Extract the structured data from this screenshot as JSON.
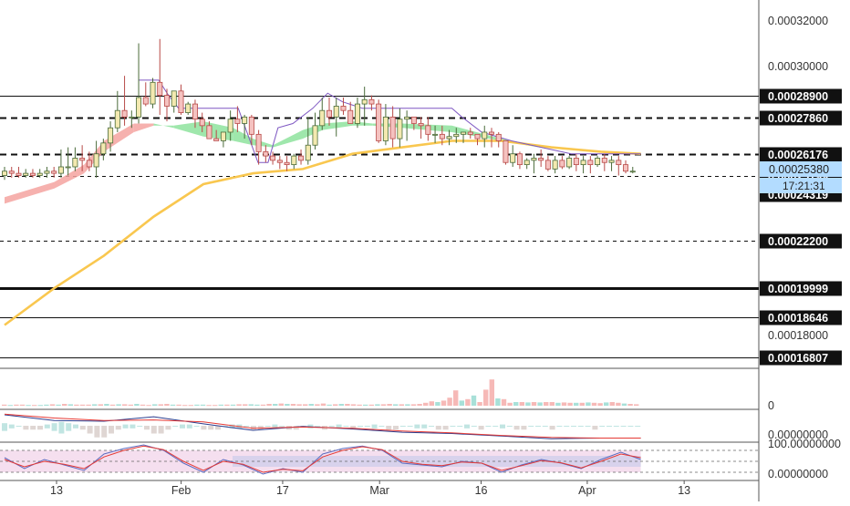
{
  "colors": {
    "up": "#26a69a",
    "down": "#ef5350",
    "candle_up_fill": "#f3e9b0",
    "candle_down_fill": "#f5c2c0",
    "ma_slow": "#f9c74f",
    "ma_band_up": "#8ee39e",
    "ma_band_down": "#f4a3a0",
    "channel": "#7e57c2",
    "osc_fill": "#d1c4e9",
    "osc_bg": "#e8b7dc",
    "price_tag": "#b3dcff",
    "axis_line": "#555555"
  },
  "chart_data": [
    {
      "type": "candlestick",
      "title": "",
      "price_axis_ticks": [
        "0.00032000",
        "0.00030000",
        "0.00018000"
      ],
      "ylim": [
        0.000163,
        0.000333
      ],
      "x_ticks": [
        "13",
        "Feb",
        "17",
        "Mar",
        "16",
        "Apr",
        "13"
      ],
      "x_range": [
        0,
        154
      ],
      "x_tick_positions": [
        0,
        27,
        49,
        70,
        92,
        115,
        136
      ],
      "price_tag": {
        "value": "0.00025380",
        "countdown": "17:21:31"
      },
      "horizontal_levels": [
        {
          "value": 0.000289,
          "label": "0.00028900",
          "style": "solid",
          "weight": 1
        },
        {
          "value": 0.0002786,
          "label": "0.00027860",
          "style": "dashed",
          "weight": 2
        },
        {
          "value": 0.00026176,
          "label": "0.00026176",
          "style": "dashed",
          "weight": 2
        },
        {
          "value": 0.00025199,
          "label": "0.00025199",
          "style": "dashed",
          "weight": 1
        },
        {
          "value": 0.00024319,
          "label": "0.00024319",
          "style": "none",
          "weight": 1
        },
        {
          "value": 0.000222,
          "label": "0.00022200",
          "style": "dashed",
          "weight": 1
        },
        {
          "value": 0.00019999,
          "label": "0.00019999",
          "style": "solid",
          "weight": 3
        },
        {
          "value": 0.00018646,
          "label": "0.00018646",
          "style": "solid",
          "weight": 1
        },
        {
          "value": 0.00016807,
          "label": "0.00016807",
          "style": "solid",
          "weight": 1
        }
      ],
      "candles_o": [
        0.000252,
        0.000254,
        0.000253,
        0.000252,
        0.000253,
        0.000252,
        0.000253,
        0.000254,
        0.000253,
        0.000256,
        0.000256,
        0.00026,
        0.000259,
        0.000256,
        0.000262,
        0.000267,
        0.000274,
        0.000282,
        0.000279,
        0.000279,
        0.000288,
        0.000285,
        0.000295,
        0.000289,
        0.000284,
        0.000291,
        0.000281,
        0.000285,
        0.000278,
        0.000275,
        0.000269,
        0.000268,
        0.000272,
        0.000278,
        0.000276,
        0.000279,
        0.000271,
        0.000263,
        0.000261,
        0.000259,
        0.000258,
        0.000257,
        0.000261,
        0.000259,
        0.000266,
        0.000275,
        0.000282,
        0.000279,
        0.000284,
        0.000282,
        0.000276,
        0.000285,
        0.000287,
        0.000285,
        0.000268,
        0.000279,
        0.000269,
        0.000278,
        0.000279,
        0.000276,
        0.000275,
        0.000271,
        0.000271,
        0.000269,
        0.00027,
        0.000271,
        0.000272,
        0.000271,
        0.000269,
        0.000272,
        0.000271,
        0.000268,
        0.000258,
        0.000262,
        0.000257,
        0.000259,
        0.00026,
        0.000259,
        0.000255,
        0.000259,
        0.000256,
        0.00026,
        0.000257,
        0.000259,
        0.000257,
        0.00026,
        0.000258,
        0.000259,
        0.000257,
        0.000254
      ],
      "candles_h": [
        0.000256,
        0.000256,
        0.000256,
        0.000255,
        0.000255,
        0.000255,
        0.000256,
        0.000256,
        0.000264,
        0.000265,
        0.000265,
        0.000266,
        0.000263,
        0.000268,
        0.000269,
        0.000277,
        0.000291,
        0.000298,
        0.000282,
        0.000313,
        0.000295,
        0.000297,
        0.000315,
        0.000292,
        0.00029,
        0.000294,
        0.000286,
        0.000287,
        0.000281,
        0.000277,
        0.000273,
        0.000271,
        0.000282,
        0.000284,
        0.00028,
        0.00028,
        0.000273,
        0.000266,
        0.000263,
        0.000261,
        0.000261,
        0.000262,
        0.000264,
        0.000279,
        0.000281,
        0.000288,
        0.000288,
        0.000288,
        0.000288,
        0.000286,
        0.000288,
        0.000293,
        0.000289,
        0.000287,
        0.000285,
        0.000284,
        0.000283,
        0.000282,
        0.000279,
        0.000279,
        0.000279,
        0.000275,
        0.000275,
        0.000273,
        0.000274,
        0.000272,
        0.000274,
        0.000271,
        0.000275,
        0.000274,
        0.000272,
        0.000268,
        0.000266,
        0.000263,
        0.00026,
        0.000262,
        0.000264,
        0.000261,
        0.000261,
        0.000261,
        0.000261,
        0.000262,
        0.000261,
        0.000261,
        0.000261,
        0.000262,
        0.000261,
        0.000261,
        0.000259,
        0.000256
      ],
      "candles_l": [
        0.00025,
        0.000251,
        0.000251,
        0.000251,
        0.000251,
        0.000251,
        0.000251,
        0.000251,
        0.000251,
        0.000252,
        0.000254,
        0.000254,
        0.000254,
        0.000251,
        0.000259,
        0.000263,
        0.000272,
        0.000275,
        0.000274,
        0.000276,
        0.000284,
        0.000283,
        0.00028,
        0.000277,
        0.000281,
        0.00028,
        0.00028,
        0.000274,
        0.000272,
        0.000272,
        0.000268,
        0.000265,
        0.000268,
        0.000272,
        0.000269,
        0.000266,
        0.000257,
        0.000258,
        0.000257,
        0.000255,
        0.000254,
        0.000255,
        0.000257,
        0.000257,
        0.000264,
        0.000273,
        0.000275,
        0.00027,
        0.00028,
        0.000278,
        0.000274,
        0.000275,
        0.000282,
        0.000267,
        0.000266,
        0.000265,
        0.000265,
        0.000268,
        0.000273,
        0.000269,
        0.000268,
        0.000267,
        0.000266,
        0.000266,
        0.000267,
        0.000267,
        0.000269,
        0.000266,
        0.000265,
        0.000265,
        0.000265,
        0.000257,
        0.000256,
        0.000255,
        0.000255,
        0.000253,
        0.000256,
        0.000254,
        0.000253,
        0.000255,
        0.000255,
        0.000254,
        0.000253,
        0.000253,
        0.000256,
        0.000254,
        0.000254,
        0.000252,
        0.000253,
        0.000253
      ],
      "candles_c": [
        0.000254,
        0.000253,
        0.000252,
        0.000253,
        0.000252,
        0.000253,
        0.000254,
        0.000253,
        0.000256,
        0.000256,
        0.00026,
        0.000259,
        0.000256,
        0.000262,
        0.000267,
        0.000274,
        0.000282,
        0.000279,
        0.000279,
        0.000288,
        0.000285,
        0.000295,
        0.000289,
        0.000284,
        0.000291,
        0.000281,
        0.000285,
        0.000278,
        0.000275,
        0.000269,
        0.000268,
        0.000272,
        0.000278,
        0.000276,
        0.000279,
        0.000271,
        0.000263,
        0.000261,
        0.000259,
        0.000258,
        0.000257,
        0.000261,
        0.000259,
        0.000266,
        0.000275,
        0.000282,
        0.000279,
        0.000284,
        0.000282,
        0.000276,
        0.000285,
        0.000287,
        0.000285,
        0.000268,
        0.000279,
        0.000269,
        0.000278,
        0.000279,
        0.000276,
        0.000275,
        0.000271,
        0.000271,
        0.000269,
        0.00027,
        0.000271,
        0.000272,
        0.000271,
        0.000269,
        0.000272,
        0.000271,
        0.000268,
        0.000258,
        0.000262,
        0.000257,
        0.000259,
        0.00026,
        0.000259,
        0.000255,
        0.000259,
        0.000256,
        0.00026,
        0.000257,
        0.000259,
        0.000257,
        0.00026,
        0.000258,
        0.000259,
        0.000257,
        0.000254,
        0.000254
      ],
      "candle_x_start": 0,
      "ma_slow_x": [
        0,
        10,
        20,
        30,
        40,
        50,
        60,
        70,
        80,
        90,
        100,
        110,
        120,
        128
      ],
      "ma_slow_y": [
        0.000183,
        0.0002,
        0.000215,
        0.000233,
        0.000248,
        0.000253,
        0.000255,
        0.000262,
        0.000265,
        0.000268,
        0.000268,
        0.000265,
        0.000263,
        0.000262
      ],
      "ma_fast_x": [
        0,
        10,
        16,
        20,
        26,
        30,
        34,
        40,
        46,
        50,
        54,
        60,
        64,
        70,
        74,
        80,
        90,
        100,
        110,
        120,
        128
      ],
      "ma_fast_a": [
        0.000239,
        0.000246,
        0.000253,
        0.000263,
        0.000272,
        0.000275,
        0.000275,
        0.000277,
        0.000274,
        0.000269,
        0.000266,
        0.000273,
        0.000276,
        0.000277,
        0.000276,
        0.000276,
        0.000275,
        0.000269,
        0.000264,
        0.000261,
        0.000259
      ],
      "ma_fast_b": [
        0.000242,
        0.000249,
        0.000257,
        0.000268,
        0.000276,
        0.000276,
        0.000274,
        0.00027,
        0.000268,
        0.000266,
        0.000265,
        0.000269,
        0.000273,
        0.000275,
        0.000275,
        0.000274,
        0.000272,
        0.000268,
        0.000264,
        0.000261,
        0.000259
      ],
      "channel_x": [
        27,
        31,
        33,
        35,
        38,
        42,
        47,
        51,
        53,
        55,
        58,
        62,
        65,
        68,
        72,
        78,
        84,
        88,
        90,
        92,
        96,
        102,
        108,
        114,
        120,
        126,
        128
      ],
      "channel_y": [
        0.000296,
        0.000296,
        0.000289,
        0.000283,
        0.000283,
        0.000283,
        0.000283,
        0.000258,
        0.000258,
        0.000274,
        0.000276,
        0.000283,
        0.00029,
        0.000286,
        0.000283,
        0.000283,
        0.000283,
        0.000283,
        0.000283,
        0.000279,
        0.000272,
        0.000268,
        0.000265,
        0.000262,
        0.000262,
        0.000262,
        0.000262
      ]
    },
    {
      "type": "bar",
      "title": "",
      "axis_tick": "0",
      "ylim": [
        0,
        100
      ],
      "values": [
        3,
        2,
        3,
        3,
        2,
        2,
        2,
        3,
        4,
        3,
        5,
        4,
        3,
        3,
        3,
        4,
        4,
        5,
        3,
        4,
        4,
        3,
        5,
        3,
        2,
        4,
        4,
        5,
        3,
        3,
        2,
        2,
        3,
        3,
        2,
        2,
        3,
        3,
        3,
        4,
        4,
        4,
        3,
        3,
        5,
        5,
        6,
        5,
        5,
        4,
        4,
        5,
        4,
        6,
        3,
        4,
        5,
        5,
        4,
        3,
        3,
        3,
        4,
        4,
        5,
        4,
        4,
        4,
        4,
        5,
        8,
        12,
        10,
        14,
        22,
        42,
        14,
        18,
        28,
        10,
        44,
        72,
        20,
        18,
        8,
        10,
        10,
        9,
        10,
        9,
        10,
        10,
        8,
        9,
        8,
        8,
        8,
        9,
        8,
        7,
        9,
        10,
        8,
        6,
        5,
        4
      ],
      "up_flags": [
        0,
        1,
        0,
        0,
        1,
        0,
        1,
        1,
        0,
        1,
        0,
        1,
        0,
        0,
        0,
        1,
        0,
        1,
        0,
        1,
        0,
        0,
        1,
        0,
        0,
        1,
        0,
        0,
        1,
        0,
        0,
        0,
        1,
        1,
        0,
        0,
        1,
        0,
        1,
        0,
        0,
        1,
        1,
        0,
        0,
        1,
        0,
        1,
        0,
        0,
        0,
        1,
        0,
        0,
        1,
        0,
        1,
        0,
        0,
        0,
        1,
        0,
        1,
        0,
        0,
        1,
        0,
        1,
        0,
        0,
        0,
        0,
        1,
        0,
        0,
        0,
        1,
        0,
        1,
        0,
        0,
        0,
        1,
        0,
        0,
        1,
        0,
        1,
        0,
        1,
        0,
        0,
        1,
        0,
        0,
        1,
        0,
        1,
        0,
        0,
        1,
        0,
        0,
        1,
        0,
        0
      ]
    },
    {
      "type": "line",
      "title": "",
      "axis_tick": "0.00000000",
      "ylim": [
        -1.2,
        1.2
      ],
      "series": [
        {
          "x": [
            0,
            10,
            20,
            30,
            40,
            50,
            60,
            70,
            80,
            90,
            100,
            110,
            120,
            128
          ],
          "y": [
            0.85,
            0.4,
            0.35,
            0.7,
            0.15,
            -0.35,
            -0.05,
            -0.25,
            -0.5,
            -0.6,
            -0.8,
            -1.0,
            -0.95,
            -0.95
          ]
        },
        {
          "x": [
            0,
            10,
            20,
            30,
            40,
            50,
            60,
            70,
            80,
            90,
            100,
            110,
            120,
            128
          ],
          "y": [
            0.9,
            0.6,
            0.4,
            0.45,
            0.3,
            -0.2,
            -0.1,
            -0.2,
            -0.4,
            -0.55,
            -0.75,
            -0.9,
            -0.95,
            -0.95
          ]
        }
      ],
      "histogram": [
        0.2,
        0.1,
        0,
        -0.1,
        -0.1,
        -0.1,
        0.1,
        0.2,
        0.3,
        0.2,
        0.1,
        -0.1,
        -0.2,
        -0.3,
        -0.3,
        -0.2,
        -0.1,
        0.1,
        0.1,
        0,
        -0.1,
        -0.2,
        -0.2,
        -0.1,
        0,
        0.1,
        0.1,
        0,
        -0.1,
        -0.1,
        -0.1,
        0,
        0.1,
        0.1,
        0,
        -0.1,
        -0.1,
        0,
        0.1,
        0,
        -0.1,
        -0.1,
        0,
        0.1,
        0,
        -0.1,
        0,
        0.1,
        0,
        -0.1,
        0,
        0,
        0.1,
        0,
        -0.1,
        -0.1,
        0,
        0,
        0.1,
        0.1,
        0,
        -0.1,
        -0.1,
        0,
        0,
        0.1,
        0,
        -0.1,
        0,
        0,
        0.1,
        0,
        -0.1,
        -0.1,
        0,
        0,
        0,
        -0.1,
        0,
        0,
        0,
        0,
        0,
        -0.1,
        0,
        0,
        0,
        0,
        0,
        0
      ]
    },
    {
      "type": "line",
      "title": "",
      "axis_ticks": [
        "100.00000000",
        "0.00000000"
      ],
      "ylim": [
        0,
        100
      ],
      "series": [
        {
          "x": [
            0,
            4,
            8,
            12,
            16,
            20,
            24,
            28,
            32,
            36,
            40,
            44,
            48,
            52,
            56,
            60,
            64,
            68,
            72,
            76,
            80,
            84,
            88,
            92,
            96,
            100,
            104,
            108,
            112,
            116,
            120,
            124,
            128
          ],
          "y": [
            60,
            30,
            55,
            40,
            25,
            70,
            85,
            95,
            80,
            45,
            20,
            55,
            40,
            15,
            30,
            20,
            70,
            85,
            92,
            80,
            45,
            40,
            35,
            50,
            45,
            20,
            40,
            55,
            45,
            30,
            55,
            75,
            55
          ]
        },
        {
          "x": [
            0,
            4,
            8,
            12,
            16,
            20,
            24,
            28,
            32,
            36,
            40,
            44,
            48,
            52,
            56,
            60,
            64,
            68,
            72,
            76,
            80,
            84,
            88,
            92,
            96,
            100,
            104,
            108,
            112,
            116,
            120,
            124,
            128
          ],
          "y": [
            55,
            35,
            50,
            42,
            30,
            62,
            80,
            92,
            82,
            50,
            25,
            50,
            42,
            20,
            28,
            24,
            62,
            80,
            90,
            82,
            50,
            42,
            38,
            48,
            45,
            25,
            38,
            52,
            46,
            32,
            50,
            70,
            60
          ]
        }
      ],
      "levels": [
        80,
        50,
        20
      ]
    }
  ]
}
